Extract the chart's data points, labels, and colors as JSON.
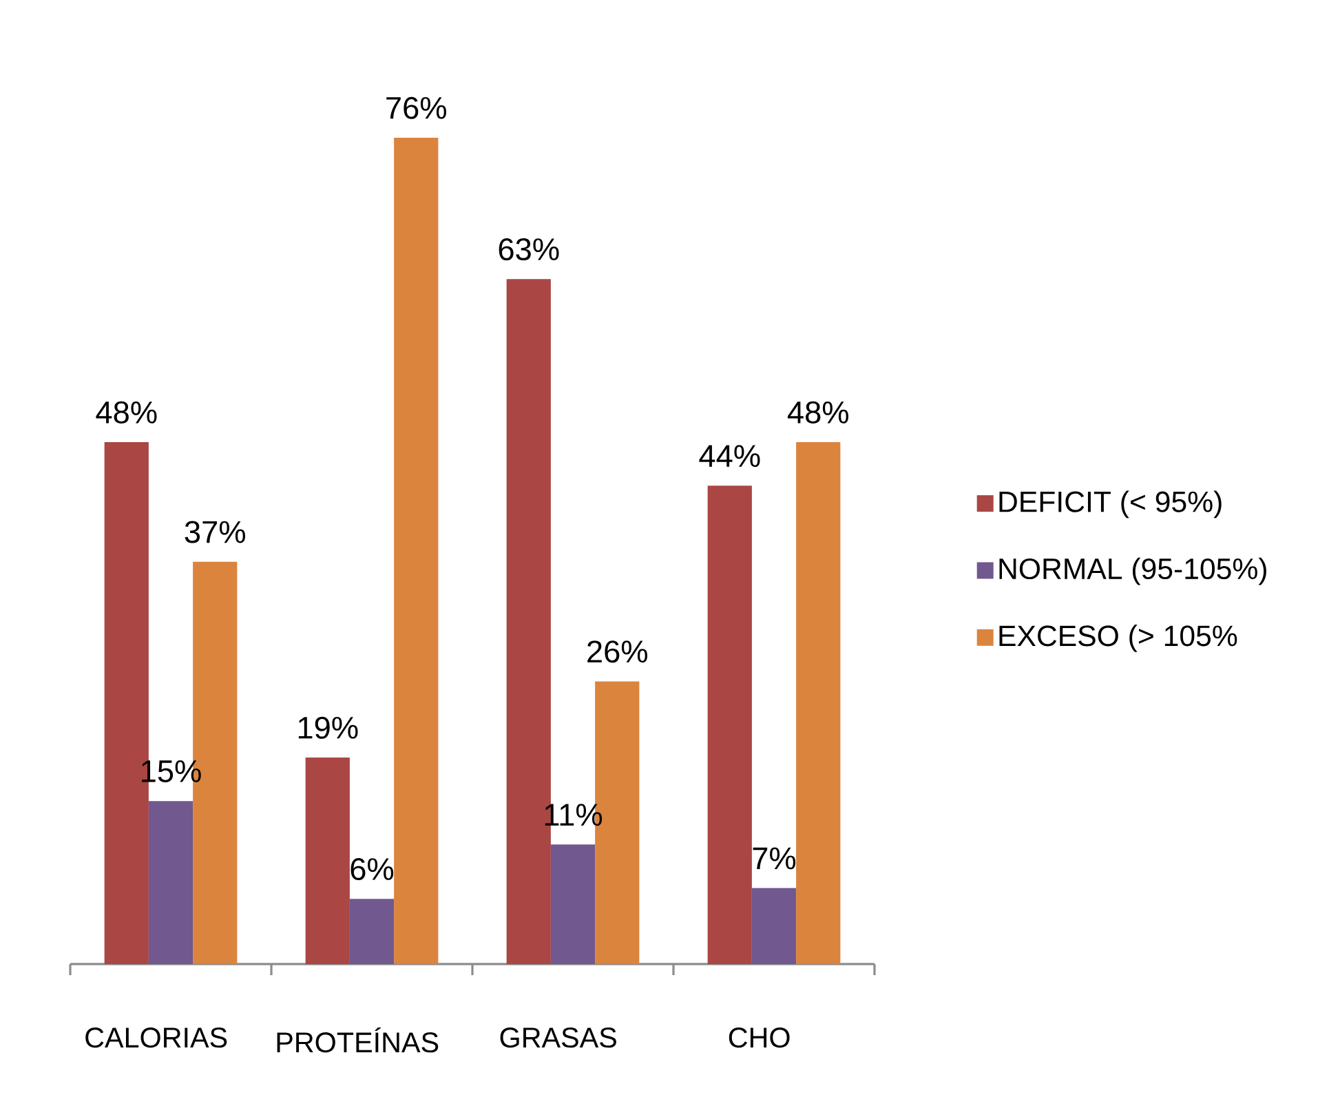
{
  "chart_data": {
    "type": "bar",
    "categories": [
      "CALORIAS",
      "PROTEÍNAS",
      "GRASAS",
      "CHO"
    ],
    "series": [
      {
        "name": "DEFICIT (< 95%)",
        "color": "#aa4643",
        "values": [
          48,
          19,
          63,
          44
        ],
        "value_labels": [
          "48%",
          "19%",
          "63%",
          "44%"
        ]
      },
      {
        "name": "NORMAL (95-105%)",
        "color": "#71588f",
        "values": [
          15,
          6,
          11,
          7
        ],
        "value_labels": [
          "15%",
          "6%",
          "11%",
          "7%"
        ]
      },
      {
        "name": "EXCESO (> 105%",
        "color": "#db843d",
        "values": [
          37,
          76,
          26,
          48
        ],
        "value_labels": [
          "37%",
          "76%",
          "26%",
          "48%"
        ]
      }
    ],
    "legend": "right"
  }
}
